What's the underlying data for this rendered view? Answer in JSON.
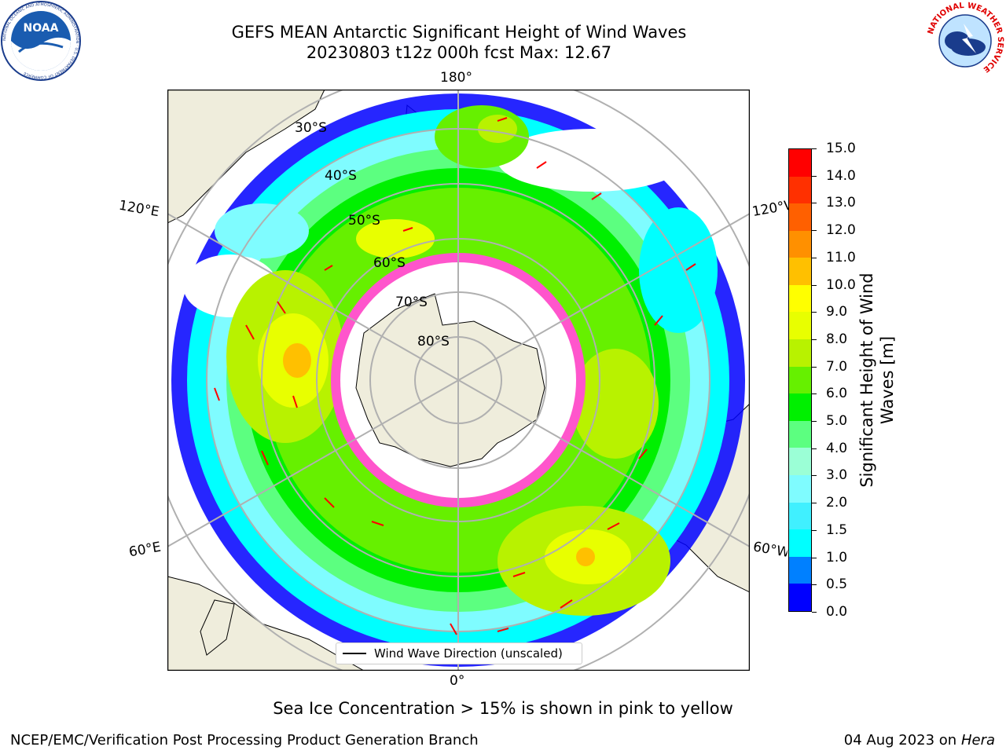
{
  "title": {
    "line1": "GEFS MEAN Antarctic Significant Height of Wind Waves",
    "line2": "20230803 t12z 000h fcst   Max: 12.67"
  },
  "map": {
    "longitude_labels": {
      "top": "180°",
      "bottom": "0°",
      "upper_left": "120°E",
      "upper_right": "120°W",
      "lower_left": "60°E",
      "lower_right": "60°W"
    },
    "latitude_labels": [
      "30°S",
      "40°S",
      "50°S",
      "60°S",
      "70°S",
      "80°S"
    ],
    "colors": {
      "land": "#efeddc",
      "ocean_blank": "#ffffff",
      "grid": "#b0b0b0",
      "sea_ice": "#ff55cc",
      "arrow": "#ff0000"
    }
  },
  "legend": {
    "label": "Wind Wave Direction (unscaled)"
  },
  "colorbar": {
    "label": "Significant Height of Wind Waves [m]",
    "label_line1": "Significant Height of Wind",
    "label_line2": "Waves [m]",
    "ticks": [
      "0.0",
      "0.5",
      "1.0",
      "1.5",
      "2.0",
      "3.0",
      "4.0",
      "5.0",
      "6.0",
      "7.0",
      "8.0",
      "9.0",
      "10.0",
      "11.0",
      "12.0",
      "13.0",
      "14.0",
      "15.0"
    ],
    "colors": [
      "#0000ff",
      "#0080ff",
      "#00ffff",
      "#40f0ff",
      "#7ffcff",
      "#9bffd6",
      "#5cff80",
      "#00f000",
      "#66f000",
      "#b8f200",
      "#e8ff00",
      "#ffff00",
      "#ffc000",
      "#ff9000",
      "#ff6000",
      "#ff3000",
      "#ff0000"
    ]
  },
  "note": "Sea Ice Concentration > 15% is shown in pink to yellow",
  "footer": {
    "left": "NCEP/EMC/Verification Post Processing Product Generation Branch",
    "right_date": "04 Aug 2023 on",
    "right_machine": "Hera"
  },
  "logos": {
    "noaa_text": "NOAA",
    "noaa_ring": "NATIONAL OCEANIC AND ATMOSPHERIC ADMINISTRATION · U.S. DEPARTMENT OF COMMERCE",
    "nws_ring": "NATIONAL WEATHER SERVICE"
  }
}
